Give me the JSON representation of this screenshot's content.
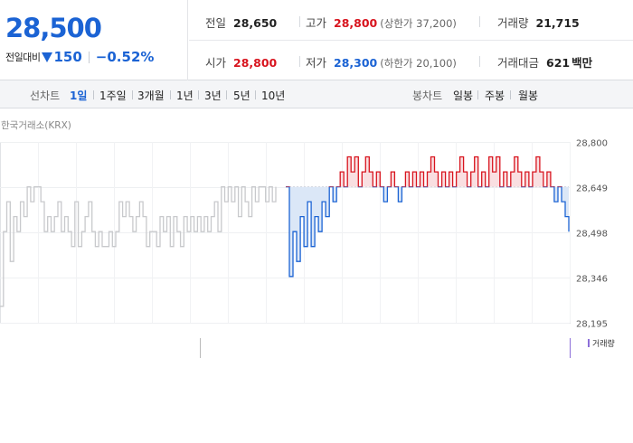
{
  "quote": {
    "price": "28,500",
    "change_label": "전일대비",
    "change_value": "150",
    "change_pct": "−0.52%",
    "direction_icon": "down-triangle-icon"
  },
  "stats": {
    "prev_close": {
      "label": "전일",
      "value": "28,650"
    },
    "high": {
      "label": "고가",
      "value": "28,800",
      "sub": "(상한가 37,200)"
    },
    "volume": {
      "label": "거래량",
      "value": "21,715"
    },
    "open": {
      "label": "시가",
      "value": "28,800"
    },
    "low": {
      "label": "저가",
      "value": "28,300",
      "sub": "(하한가 20,100)"
    },
    "turnover": {
      "label": "거래대금",
      "value": "621",
      "unit": "백만"
    }
  },
  "tabs": {
    "line_title": "선차트",
    "periods": [
      "1일",
      "1주일",
      "3개월",
      "1년",
      "3년",
      "5년",
      "10년"
    ],
    "active_period": "1일",
    "candle_title": "봉차트",
    "candles": [
      "일봉",
      "주봉",
      "월봉"
    ]
  },
  "colors": {
    "accent_blue": "#1b63d4",
    "up_red": "#d8141e",
    "prior_gray": "#c8c9cc",
    "volume_purple": "#8c6fd9"
  },
  "chart_data": {
    "type": "line",
    "source_label": "한국거래소(KRX)",
    "baseline": 28650,
    "ylim": [
      28195,
      28800
    ],
    "y_ticks": [
      "28,800",
      "28,649",
      "28,498",
      "28,346",
      "28,195"
    ],
    "grid": true,
    "volume_legend": "거래량",
    "series": [
      {
        "style": "prior",
        "values": [
          28250,
          28500,
          28600,
          28400,
          28550,
          28500,
          28600,
          28550,
          28650,
          28600,
          28650,
          28650,
          28600,
          28500,
          28550,
          28500,
          28550,
          28600,
          28500,
          28550,
          28500,
          28450,
          28600,
          28450,
          28500,
          28550,
          28600,
          28500,
          28450,
          28500,
          28450,
          28450,
          28500,
          28450,
          28500,
          28600,
          28550,
          28600,
          28550,
          28500,
          28550,
          28600,
          28550,
          28450,
          28500,
          28500,
          28450,
          28550,
          28500,
          28550,
          28450,
          28550,
          28500,
          28450,
          28550,
          28500,
          28550,
          28500,
          28550,
          28500,
          28550,
          28500,
          28550,
          28600,
          28500,
          28650,
          28600,
          28650,
          28600,
          28650,
          28550,
          28650,
          28600,
          28550,
          28650,
          28600,
          28650,
          28650,
          28600,
          28650,
          28600,
          28650
        ]
      },
      {
        "style": "today",
        "values": [
          28650,
          28350,
          28500,
          28400,
          28550,
          28450,
          28600,
          28450,
          28550,
          28500,
          28600,
          28550,
          28650,
          28600,
          28650,
          28700,
          28650,
          28750,
          28700,
          28750,
          28650,
          28700,
          28750,
          28700,
          28650,
          28700,
          28650,
          28600,
          28650,
          28700,
          28650,
          28600,
          28650,
          28700,
          28650,
          28700,
          28650,
          28700,
          28650,
          28700,
          28750,
          28700,
          28650,
          28700,
          28650,
          28700,
          28650,
          28700,
          28750,
          28700,
          28650,
          28700,
          28750,
          28650,
          28700,
          28650,
          28750,
          28700,
          28750,
          28650,
          28700,
          28650,
          28700,
          28750,
          28700,
          28650,
          28700,
          28650,
          28700,
          28750,
          28700,
          28650,
          28700,
          28650,
          28600,
          28650,
          28600,
          28550,
          28500
        ]
      }
    ]
  }
}
